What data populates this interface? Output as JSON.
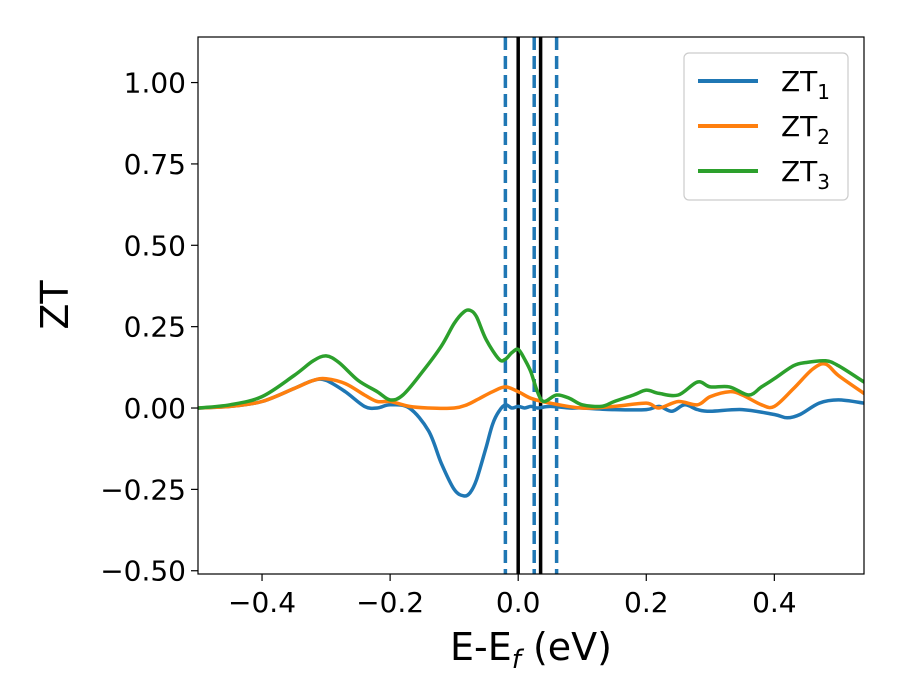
{
  "chart_data": {
    "type": "line",
    "xlabel": "E-E",
    "xlabel_sub": "f",
    "xlabel_unit": " (eV)",
    "ylabel": "ZT",
    "xlim": [
      -0.5,
      0.54
    ],
    "ylim": [
      -0.51,
      1.14
    ],
    "xticks": [
      -0.4,
      -0.2,
      0.0,
      0.2,
      0.4
    ],
    "xtick_labels": [
      "−0.4",
      "−0.2",
      "0.0",
      "0.2",
      "0.4"
    ],
    "yticks": [
      -0.5,
      -0.25,
      0.0,
      0.25,
      0.5,
      0.75,
      1.0
    ],
    "ytick_labels": [
      "−0.50",
      "−0.25",
      "0.00",
      "0.25",
      "0.50",
      "0.75",
      "1.00"
    ],
    "grid": false,
    "legend_position": "top-right",
    "vlines": [
      {
        "x": 0.0,
        "style": "solid",
        "color": "#000000"
      },
      {
        "x": 0.035,
        "style": "solid",
        "color": "#000000"
      },
      {
        "x": -0.02,
        "style": "dashed",
        "color": "#1f77b4"
      },
      {
        "x": 0.025,
        "style": "dashed",
        "color": "#1f77b4"
      },
      {
        "x": 0.06,
        "style": "dashed",
        "color": "#1f77b4"
      }
    ],
    "series": [
      {
        "name": "ZT",
        "name_sub": "1",
        "color": "#1f77b4",
        "x": [
          -0.5,
          -0.45,
          -0.4,
          -0.35,
          -0.32,
          -0.3,
          -0.27,
          -0.24,
          -0.22,
          -0.2,
          -0.17,
          -0.14,
          -0.12,
          -0.1,
          -0.085,
          -0.075,
          -0.065,
          -0.05,
          -0.04,
          -0.03,
          -0.02,
          -0.01,
          0.0,
          0.01,
          0.02,
          0.03,
          0.05,
          0.08,
          0.1,
          0.15,
          0.2,
          0.22,
          0.24,
          0.26,
          0.28,
          0.3,
          0.35,
          0.4,
          0.42,
          0.44,
          0.47,
          0.5,
          0.54
        ],
        "y": [
          0.0,
          0.005,
          0.02,
          0.06,
          0.085,
          0.085,
          0.05,
          0.005,
          0.0,
          0.01,
          0.0,
          -0.07,
          -0.17,
          -0.25,
          -0.27,
          -0.26,
          -0.22,
          -0.12,
          -0.05,
          -0.01,
          0.01,
          0.0,
          0.005,
          0.0,
          0.005,
          0.0,
          0.005,
          0.0,
          0.0,
          -0.005,
          -0.005,
          0.005,
          -0.01,
          0.01,
          -0.005,
          -0.01,
          -0.005,
          -0.02,
          -0.03,
          -0.02,
          0.015,
          0.025,
          0.015
        ]
      },
      {
        "name": "ZT",
        "name_sub": "2",
        "color": "#ff7f0e",
        "x": [
          -0.5,
          -0.45,
          -0.4,
          -0.35,
          -0.32,
          -0.3,
          -0.27,
          -0.24,
          -0.22,
          -0.2,
          -0.17,
          -0.14,
          -0.1,
          -0.08,
          -0.06,
          -0.04,
          -0.02,
          0.0,
          0.02,
          0.05,
          0.1,
          0.15,
          0.2,
          0.22,
          0.25,
          0.28,
          0.3,
          0.33,
          0.35,
          0.38,
          0.4,
          0.43,
          0.46,
          0.48,
          0.5,
          0.54
        ],
        "y": [
          0.0,
          0.005,
          0.02,
          0.06,
          0.085,
          0.09,
          0.075,
          0.04,
          0.02,
          0.02,
          0.005,
          0.0,
          0.0,
          0.01,
          0.03,
          0.05,
          0.065,
          0.05,
          0.03,
          0.015,
          0.0,
          0.005,
          0.015,
          0.0,
          0.02,
          0.01,
          0.035,
          0.05,
          0.04,
          0.01,
          0.005,
          0.06,
          0.12,
          0.135,
          0.1,
          0.045
        ]
      },
      {
        "name": "ZT",
        "name_sub": "3",
        "color": "#2ca02c",
        "x": [
          -0.5,
          -0.45,
          -0.4,
          -0.35,
          -0.32,
          -0.3,
          -0.28,
          -0.25,
          -0.22,
          -0.2,
          -0.18,
          -0.15,
          -0.12,
          -0.1,
          -0.085,
          -0.075,
          -0.065,
          -0.05,
          -0.03,
          -0.02,
          -0.01,
          0.0,
          0.01,
          0.02,
          0.03,
          0.04,
          0.06,
          0.08,
          0.1,
          0.13,
          0.15,
          0.18,
          0.2,
          0.22,
          0.25,
          0.28,
          0.3,
          0.33,
          0.36,
          0.38,
          0.4,
          0.43,
          0.45,
          0.48,
          0.5,
          0.54
        ],
        "y": [
          0.0,
          0.01,
          0.035,
          0.1,
          0.145,
          0.16,
          0.14,
          0.085,
          0.05,
          0.025,
          0.04,
          0.11,
          0.19,
          0.26,
          0.295,
          0.3,
          0.28,
          0.21,
          0.15,
          0.15,
          0.17,
          0.18,
          0.15,
          0.11,
          0.05,
          0.02,
          0.04,
          0.03,
          0.01,
          0.005,
          0.02,
          0.04,
          0.055,
          0.045,
          0.04,
          0.08,
          0.065,
          0.065,
          0.04,
          0.065,
          0.09,
          0.13,
          0.14,
          0.145,
          0.13,
          0.08
        ]
      }
    ]
  }
}
